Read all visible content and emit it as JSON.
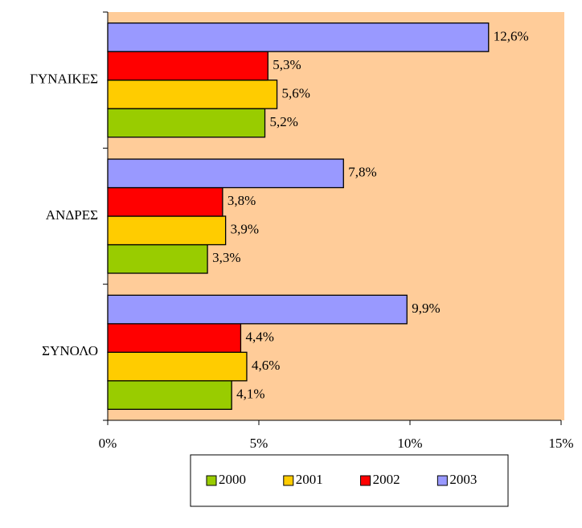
{
  "chart_data": {
    "type": "bar",
    "orientation": "horizontal",
    "categories": [
      "ΣΥΝΟΛΟ",
      "ΑΝΔΡΕΣ",
      "ΓΥΝΑΙΚΕΣ"
    ],
    "series": [
      {
        "name": "2000",
        "color": "#99CC00",
        "values": [
          4.1,
          3.3,
          5.2
        ],
        "value_labels": [
          "4,1%",
          "3,3%",
          "5,2%"
        ]
      },
      {
        "name": "2001",
        "color": "#FFCC00",
        "values": [
          4.6,
          3.9,
          5.6
        ],
        "value_labels": [
          "4,6%",
          "3,9%",
          "5,6%"
        ]
      },
      {
        "name": "2002",
        "color": "#FF0000",
        "values": [
          4.4,
          3.8,
          5.3
        ],
        "value_labels": [
          "4,4%",
          "3,8%",
          "5,3%"
        ]
      },
      {
        "name": "2003",
        "color": "#9999FF",
        "values": [
          9.9,
          7.8,
          12.6
        ],
        "value_labels": [
          "9,9%",
          "7,8%",
          "12,6%"
        ]
      }
    ],
    "xlim": [
      0,
      15
    ],
    "xticks": [
      {
        "value": 0,
        "label": "0%"
      },
      {
        "value": 5,
        "label": "5%"
      },
      {
        "value": 10,
        "label": "10%"
      },
      {
        "value": 15,
        "label": "15%"
      }
    ],
    "plot_background": "#FFCC99",
    "legend": "bottom"
  }
}
